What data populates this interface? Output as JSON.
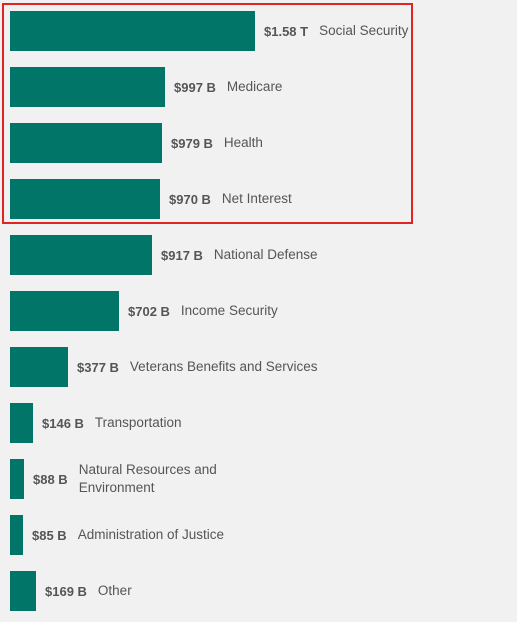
{
  "colors": {
    "bar": "#007568",
    "highlight": "#e02424",
    "text": "#555555",
    "background": "#f1f1f1"
  },
  "chart_data": {
    "type": "bar",
    "orientation": "horizontal",
    "unit": "USD (billions)",
    "categories": [
      "Social Security",
      "Medicare",
      "Health",
      "Net Interest",
      "National Defense",
      "Income Security",
      "Veterans Benefits and Services",
      "Transportation",
      "Natural Resources and Environment",
      "Administration of Justice",
      "Other"
    ],
    "values": [
      1580,
      997,
      979,
      970,
      917,
      702,
      377,
      146,
      88,
      85,
      169
    ],
    "value_labels": [
      "$1.58 T",
      "$997 B",
      "$979 B",
      "$970 B",
      "$917 B",
      "$702 B",
      "$377 B",
      "$146 B",
      "$88 B",
      "$85 B",
      "$169 B"
    ],
    "highlighted_categories": [
      "Social Security",
      "Medicare",
      "Health",
      "Net Interest"
    ]
  }
}
